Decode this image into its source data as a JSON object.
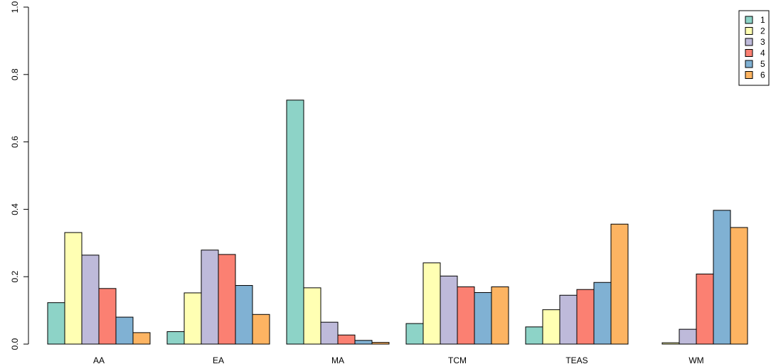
{
  "chart_data": {
    "type": "bar",
    "categories": [
      "AA",
      "EA",
      "MA",
      "TCM",
      "TEAS",
      "WM"
    ],
    "series": [
      {
        "name": "1",
        "color": "#8DD3C7",
        "values": [
          0.123,
          0.037,
          0.724,
          0.061,
          0.051,
          0.0
        ]
      },
      {
        "name": "2",
        "color": "#FFFFB3",
        "values": [
          0.331,
          0.152,
          0.167,
          0.241,
          0.102,
          0.004
        ]
      },
      {
        "name": "3",
        "color": "#BEBADA",
        "values": [
          0.264,
          0.279,
          0.065,
          0.202,
          0.145,
          0.044
        ]
      },
      {
        "name": "4",
        "color": "#FB8072",
        "values": [
          0.165,
          0.266,
          0.027,
          0.17,
          0.162,
          0.208
        ]
      },
      {
        "name": "5",
        "color": "#80B1D3",
        "values": [
          0.08,
          0.174,
          0.011,
          0.153,
          0.183,
          0.397
        ]
      },
      {
        "name": "6",
        "color": "#FDB462",
        "values": [
          0.034,
          0.088,
          0.005,
          0.17,
          0.356,
          0.346
        ]
      }
    ],
    "title": "",
    "xlabel": "",
    "ylabel": "",
    "ylim": [
      0,
      1.0
    ],
    "yticks": [
      "0.0",
      "0.2",
      "0.4",
      "0.6",
      "0.8",
      "1.0"
    ],
    "grid": false,
    "legend": "top-right"
  }
}
